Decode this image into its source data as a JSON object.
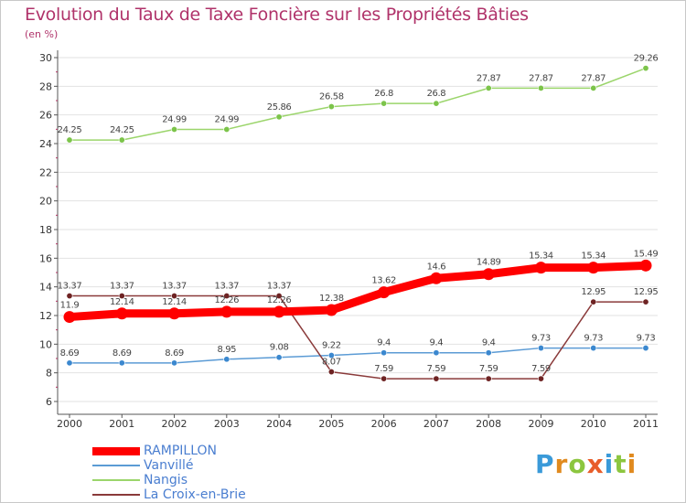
{
  "title": "Evolution du Taux de Taxe Foncière sur les Propriétés Bâties",
  "unit": "(en %)",
  "brand": {
    "letters": [
      "P",
      "r",
      "o",
      "x",
      "i",
      "t",
      "i"
    ],
    "colors": [
      "#3a9ad9",
      "#e08a1e",
      "#8cc63f",
      "#e85d2a",
      "#3a9ad9",
      "#8cc63f",
      "#e08a1e"
    ]
  },
  "chart_data": {
    "type": "line",
    "title": "Evolution du Taux de Taxe Foncière sur les Propriétés Bâties",
    "ylabel": "(en %)",
    "xlabel": "",
    "x": [
      "2000",
      "2001",
      "2002",
      "2003",
      "2004",
      "2005",
      "2006",
      "2007",
      "2008",
      "2009",
      "2010",
      "2011"
    ],
    "ylim": [
      6,
      30
    ],
    "yticks": [
      "6",
      "8",
      "10",
      "12",
      "14",
      "16",
      "18",
      "20",
      "22",
      "24",
      "26",
      "28",
      "30"
    ],
    "legend_position": "bottom-left",
    "series": [
      {
        "name": "Vanvillé",
        "color": "#5b9bd5",
        "marker": "#3b88cf",
        "width": "thin",
        "values": [
          8.69,
          8.69,
          8.69,
          8.95,
          9.08,
          9.22,
          9.4,
          9.4,
          9.4,
          9.73,
          9.73,
          9.73
        ],
        "labels": [
          "8.69",
          "8.69",
          "8.69",
          "8.95",
          "9.08",
          "9.22",
          "9.4",
          "9.4",
          "9.4",
          "9.73",
          "9.73",
          "9.73"
        ]
      },
      {
        "name": "Nangis",
        "color": "#9bd56b",
        "marker": "#7cc44a",
        "width": "thin",
        "values": [
          24.25,
          24.25,
          24.99,
          24.99,
          25.86,
          26.58,
          26.8,
          26.8,
          27.87,
          27.87,
          27.87,
          29.26
        ],
        "labels": [
          "24.25",
          "24.25",
          "24.99",
          "24.99",
          "25.86",
          "26.58",
          "26.8",
          "26.8",
          "27.87",
          "27.87",
          "27.87",
          "29.26"
        ]
      },
      {
        "name": "La Croix-en-Brie",
        "color": "#8a3a3a",
        "marker": "#6e2323",
        "width": "thin",
        "values": [
          13.37,
          13.37,
          13.37,
          13.37,
          13.37,
          8.07,
          7.59,
          7.59,
          7.59,
          7.59,
          12.95,
          12.95
        ],
        "labels": [
          "13.37",
          "13.37",
          "13.37",
          "13.37",
          "13.37",
          "8.07",
          "7.59",
          "7.59",
          "7.59",
          "7.59",
          "12.95",
          "12.95"
        ]
      },
      {
        "name": "RAMPILLON",
        "color": "#ff0000",
        "marker": "#ff0000",
        "width": "thick",
        "values": [
          11.9,
          12.14,
          12.14,
          12.26,
          12.26,
          12.38,
          13.62,
          14.6,
          14.89,
          15.34,
          15.34,
          15.49
        ],
        "labels": [
          "11.9",
          "12.14",
          "12.14",
          "12.26",
          "12.26",
          "12.38",
          "13.62",
          "14.6",
          "14.89",
          "15.34",
          "15.34",
          "15.49"
        ]
      }
    ],
    "legend_order": [
      "RAMPILLON",
      "Vanvillé",
      "Nangis",
      "La Croix-en-Brie"
    ]
  }
}
